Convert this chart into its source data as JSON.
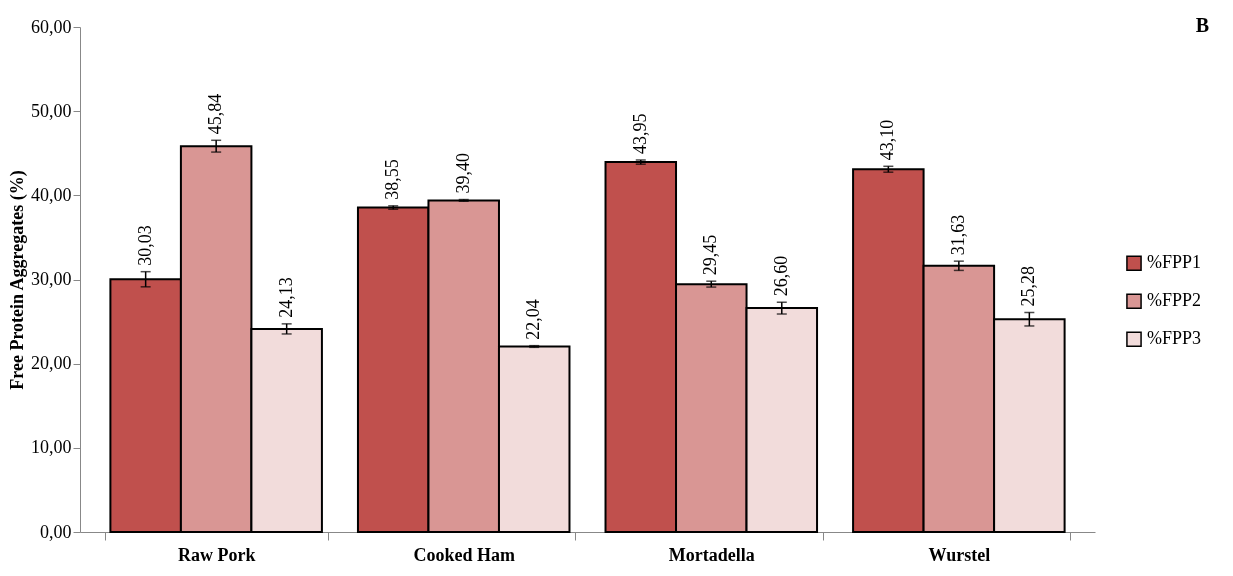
{
  "chart_data": {
    "type": "bar",
    "ylabel": "Free Protein Aggregates (%)",
    "annotations": [
      "B"
    ],
    "categories": [
      "Raw Pork",
      "Cooked Ham",
      "Mortadella",
      "Wurstel"
    ],
    "series": [
      {
        "name": "%FPP1",
        "color": "#c0504d",
        "values": [
          30.03,
          38.55,
          43.95,
          43.1
        ],
        "errors": [
          0.9,
          0.2,
          0.25,
          0.35
        ],
        "value_labels": [
          "30,03",
          "38,55",
          "43,95",
          "43,10"
        ]
      },
      {
        "name": "%FPP2",
        "color": "#d99694",
        "values": [
          45.84,
          39.4,
          29.45,
          31.63
        ],
        "errors": [
          0.7,
          0.1,
          0.35,
          0.55
        ],
        "value_labels": [
          "45,84",
          "39,40",
          "29,45",
          "31,63"
        ]
      },
      {
        "name": "%FPP3",
        "color": "#f2dcdb",
        "values": [
          24.13,
          22.04,
          26.6,
          25.28
        ],
        "errors": [
          0.6,
          0.1,
          0.7,
          0.8
        ],
        "value_labels": [
          "24,13",
          "22,04",
          "26,60",
          "25,28"
        ]
      }
    ],
    "ylim": [
      0,
      60
    ],
    "yticks": [
      {
        "value": 0,
        "label": "0,00"
      },
      {
        "value": 10,
        "label": "10,00"
      },
      {
        "value": 20,
        "label": "20,00"
      },
      {
        "value": 30,
        "label": "30,00"
      },
      {
        "value": 40,
        "label": "40,00"
      },
      {
        "value": 50,
        "label": "50,00"
      },
      {
        "value": 60,
        "label": "60,00"
      }
    ],
    "grid": false,
    "legend": "right"
  }
}
